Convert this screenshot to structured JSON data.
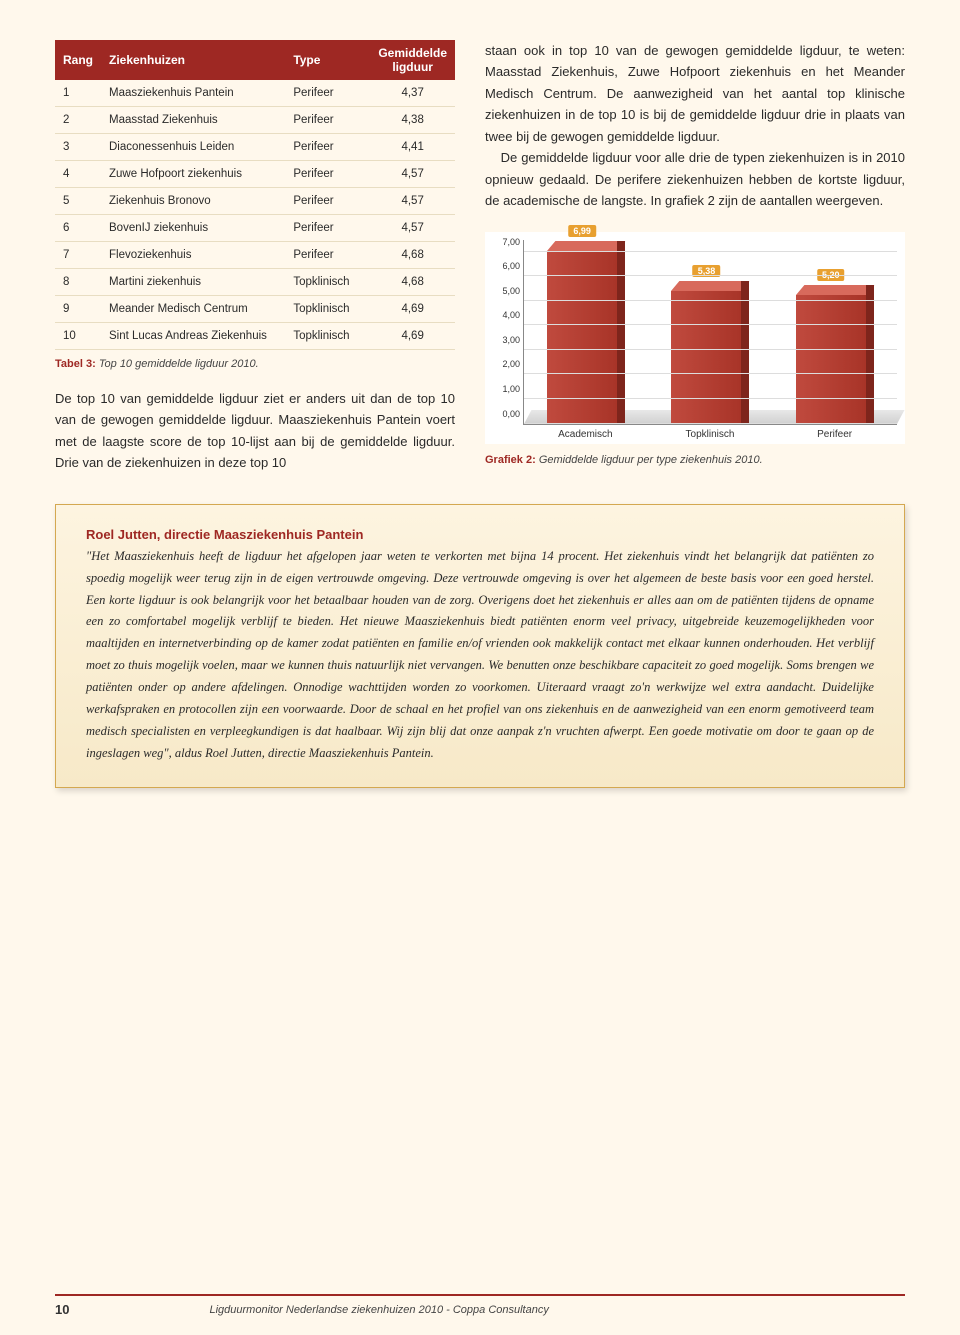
{
  "table": {
    "headers": [
      "Rang",
      "Ziekenhuizen",
      "Type",
      "Gemiddelde ligduur"
    ],
    "rows": [
      {
        "rang": "1",
        "naam": "Maasziekenhuis Pantein",
        "type": "Perifeer",
        "val": "4,37"
      },
      {
        "rang": "2",
        "naam": "Maasstad Ziekenhuis",
        "type": "Perifeer",
        "val": "4,38"
      },
      {
        "rang": "3",
        "naam": "Diaconessenhuis Leiden",
        "type": "Perifeer",
        "val": "4,41"
      },
      {
        "rang": "4",
        "naam": "Zuwe Hofpoort ziekenhuis",
        "type": "Perifeer",
        "val": "4,57"
      },
      {
        "rang": "5",
        "naam": "Ziekenhuis Bronovo",
        "type": "Perifeer",
        "val": "4,57"
      },
      {
        "rang": "6",
        "naam": "BovenIJ ziekenhuis",
        "type": "Perifeer",
        "val": "4,57"
      },
      {
        "rang": "7",
        "naam": "Flevoziekenhuis",
        "type": "Perifeer",
        "val": "4,68"
      },
      {
        "rang": "8",
        "naam": "Martini ziekenhuis",
        "type": "Topklinisch",
        "val": "4,68"
      },
      {
        "rang": "9",
        "naam": "Meander Medisch Centrum",
        "type": "Topklinisch",
        "val": "4,69"
      },
      {
        "rang": "10",
        "naam": "Sint Lucas Andreas Ziekenhuis",
        "type": "Topklinisch",
        "val": "4,69"
      }
    ],
    "caption_label": "Tabel 3: ",
    "caption_text": "Top 10 gemiddelde ligduur 2010."
  },
  "left_para": "De top 10 van gemiddelde ligduur ziet er anders uit dan de top 10 van de gewogen gemiddelde ligduur. Maasziekenhuis Pantein voert met de laagste score de top 10-lijst aan bij de gemiddelde ligduur. Drie van de ziekenhuizen in deze top 10",
  "right_para1": "staan ook in top 10 van de gewogen gemiddelde ligduur, te weten: Maasstad Ziekenhuis, Zuwe Hofpoort ziekenhuis en het Meander Medisch Centrum. De aanwezigheid van het aantal top klinische ziekenhuizen in de top 10 is bij de gemiddelde ligduur drie in plaats van twee bij de gewogen gemiddelde ligduur.",
  "right_para2": "De gemiddelde ligduur voor alle drie de typen ziekenhuizen is in 2010 opnieuw gedaald. De perifere ziekenhuizen hebben de kortste ligduur, de academische de langste. In grafiek 2 zijn de aantallen weergeven.",
  "chart": {
    "type": "bar",
    "categories": [
      "Academisch",
      "Topklinisch",
      "Perifeer"
    ],
    "values": [
      6.99,
      5.38,
      5.2
    ],
    "labels": [
      "6,99",
      "5,38",
      "5,20"
    ],
    "y_ticks": [
      "0,00",
      "1,00",
      "2,00",
      "3,00",
      "4,00",
      "5,00",
      "6,00",
      "7,00"
    ],
    "y_max": 7.5,
    "bar_color_front": "#b53d30",
    "bar_color_top": "#d86a5c",
    "bar_color_side": "#7e251c",
    "label_bg": "#e8a030",
    "caption_label": "Grafiek 2: ",
    "caption_text": "Gemiddelde ligduur per type ziekenhuis 2010."
  },
  "quote": {
    "title": "Roel Jutten, directie Maasziekenhuis Pantein",
    "body": "\"Het Maasziekenhuis heeft de ligduur het afgelopen jaar weten te verkorten met bijna 14 procent. Het ziekenhuis vindt het belangrijk dat patiënten zo spoedig mogelijk weer terug zijn in de eigen vertrouwde omgeving. Deze vertrouwde omgeving is over het algemeen de beste basis voor een goed herstel. Een korte ligduur is ook belangrijk voor het betaalbaar houden van de zorg. Overigens doet het ziekenhuis er alles aan om de patiënten tijdens de opname een zo comfortabel mogelijk verblijf te bieden. Het nieuwe Maasziekenhuis biedt patiënten enorm veel privacy, uitgebreide keuzemogelijkheden voor maaltijden en internetverbinding op de kamer zodat patiënten en familie en/of vrienden ook makkelijk contact met elkaar kunnen onderhouden. Het verblijf moet zo thuis mogelijk voelen, maar we kunnen thuis natuurlijk niet vervangen. We benutten onze beschikbare capaciteit zo goed mogelijk. Soms brengen we patiënten onder op andere afdelingen. Onnodige wachttijden worden zo voorkomen. Uiteraard vraagt zo'n werkwijze wel extra aandacht. Duidelijke werkafspraken en protocollen zijn een voorwaarde. Door de schaal en het profiel van ons ziekenhuis en de aanwezigheid van een enorm gemotiveerd team medisch specialisten en verpleegkundigen is dat haalbaar. Wij zijn blij dat onze aanpak z'n vruchten afwerpt. Een goede motivatie om door te gaan op de ingeslagen weg\", aldus Roel Jutten, directie Maasziekenhuis Pantein."
  },
  "footer": {
    "page": "10",
    "text": "Ligduurmonitor Nederlandse ziekenhuizen 2010 - Coppa Consultancy"
  }
}
